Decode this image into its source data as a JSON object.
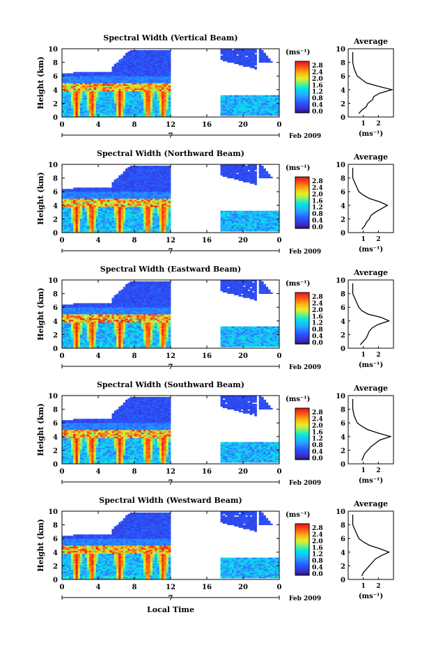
{
  "figure": {
    "xlabel": "Local Time",
    "date_label": "Feb 2009",
    "day_label": "7",
    "colorbar_unit": "(ms⁻¹)",
    "colorbar_ticks": [
      "2.8",
      "2.4",
      "2.0",
      "1.6",
      "1.2",
      "0.8",
      "0.4",
      "0.0"
    ],
    "avg_title": "Average",
    "avg_xlabel": "(ms⁻¹)",
    "avg_xticks": [
      "1",
      "2"
    ],
    "ylabel": "Height (km)",
    "yticks": [
      "10",
      "8",
      "6",
      "4",
      "2",
      "0"
    ],
    "xticks": [
      "0",
      "4",
      "8",
      "12",
      "16",
      "20",
      "0"
    ]
  },
  "chart_data": [
    {
      "type": "heatmap",
      "title": "Spectral Width (Vertical Beam)",
      "xlabel": "Local Time",
      "ylabel": "Height (km)",
      "xlim": [
        0,
        24
      ],
      "ylim": [
        0,
        10
      ],
      "colorbar": {
        "label": "(ms⁻¹)",
        "range": [
          0.0,
          3.0
        ]
      },
      "data_gap": [
        12.0,
        17.5
      ],
      "average_profile": {
        "title": "Average",
        "xlabel": "(ms⁻¹)",
        "height_km": [
          0.5,
          1.0,
          1.5,
          2.0,
          2.5,
          3.0,
          3.5,
          4.0,
          4.5,
          5.0,
          5.5,
          6.0,
          7.0,
          8.0,
          9.0,
          9.5
        ],
        "width_ms": [
          0.7,
          0.9,
          1.2,
          1.3,
          1.6,
          1.7,
          2.1,
          2.9,
          2.0,
          1.2,
          0.9,
          0.6,
          0.4,
          0.3,
          0.3,
          0.3
        ]
      }
    },
    {
      "type": "heatmap",
      "title": "Spectral Width (Northward Beam)",
      "xlabel": "Local Time",
      "ylabel": "Height (km)",
      "xlim": [
        0,
        24
      ],
      "ylim": [
        0,
        10
      ],
      "colorbar": {
        "label": "(ms⁻¹)",
        "range": [
          0.0,
          3.0
        ]
      },
      "data_gap": [
        12.0,
        17.5
      ],
      "average_profile": {
        "title": "Average",
        "xlabel": "(ms⁻¹)",
        "height_km": [
          0.5,
          1.0,
          1.5,
          2.0,
          2.5,
          3.0,
          3.5,
          4.0,
          4.5,
          5.0,
          5.5,
          6.0,
          7.0,
          8.0,
          9.0,
          9.5
        ],
        "width_ms": [
          0.9,
          1.1,
          1.2,
          1.4,
          1.5,
          1.8,
          2.2,
          2.6,
          2.1,
          1.4,
          1.0,
          0.7,
          0.5,
          0.3,
          0.3,
          0.3
        ]
      }
    },
    {
      "type": "heatmap",
      "title": "Spectral Width (Eastward Beam)",
      "xlabel": "Local Time",
      "ylabel": "Height (km)",
      "xlim": [
        0,
        24
      ],
      "ylim": [
        0,
        10
      ],
      "colorbar": {
        "label": "(ms⁻¹)",
        "range": [
          0.0,
          3.0
        ]
      },
      "data_gap": [
        12.0,
        17.5
      ],
      "average_profile": {
        "title": "Average",
        "xlabel": "(ms⁻¹)",
        "height_km": [
          0.5,
          1.0,
          1.5,
          2.0,
          2.5,
          3.0,
          3.5,
          4.0,
          4.5,
          5.0,
          5.5,
          6.0,
          7.0,
          8.0,
          9.0,
          9.5
        ],
        "width_ms": [
          0.8,
          1.0,
          1.2,
          1.3,
          1.4,
          1.6,
          2.0,
          2.7,
          2.2,
          1.3,
          0.9,
          0.7,
          0.5,
          0.3,
          0.3,
          0.3
        ]
      }
    },
    {
      "type": "heatmap",
      "title": "Spectral Width (Southward Beam)",
      "xlabel": "Local Time",
      "ylabel": "Height (km)",
      "xlim": [
        0,
        24
      ],
      "ylim": [
        0,
        10
      ],
      "colorbar": {
        "label": "(ms⁻¹)",
        "range": [
          0.0,
          3.0
        ]
      },
      "data_gap": [
        12.0,
        17.5
      ],
      "average_profile": {
        "title": "Average",
        "xlabel": "(ms⁻¹)",
        "height_km": [
          0.5,
          1.0,
          1.5,
          2.0,
          2.5,
          3.0,
          3.5,
          4.0,
          4.5,
          5.0,
          5.5,
          6.0,
          7.0,
          8.0,
          9.0,
          9.5
        ],
        "width_ms": [
          0.9,
          1.0,
          1.1,
          1.3,
          1.5,
          1.8,
          2.1,
          2.8,
          2.0,
          1.3,
          0.9,
          0.6,
          0.4,
          0.3,
          0.3,
          0.3
        ]
      }
    },
    {
      "type": "heatmap",
      "title": "Spectral Width (Westward Beam)",
      "xlabel": "Local Time",
      "ylabel": "Height (km)",
      "xlim": [
        0,
        24
      ],
      "ylim": [
        0,
        10
      ],
      "colorbar": {
        "label": "(ms⁻¹)",
        "range": [
          0.0,
          3.0
        ]
      },
      "data_gap": [
        12.0,
        17.5
      ],
      "average_profile": {
        "title": "Average",
        "xlabel": "(ms⁻¹)",
        "height_km": [
          0.5,
          1.0,
          1.5,
          2.0,
          2.5,
          3.0,
          3.5,
          4.0,
          4.5,
          5.0,
          5.5,
          6.0,
          7.0,
          8.0,
          9.0,
          9.5
        ],
        "width_ms": [
          0.9,
          1.0,
          1.2,
          1.4,
          1.6,
          1.8,
          2.2,
          2.7,
          2.1,
          1.4,
          1.0,
          0.7,
          0.5,
          0.3,
          0.3,
          0.3
        ]
      }
    }
  ]
}
